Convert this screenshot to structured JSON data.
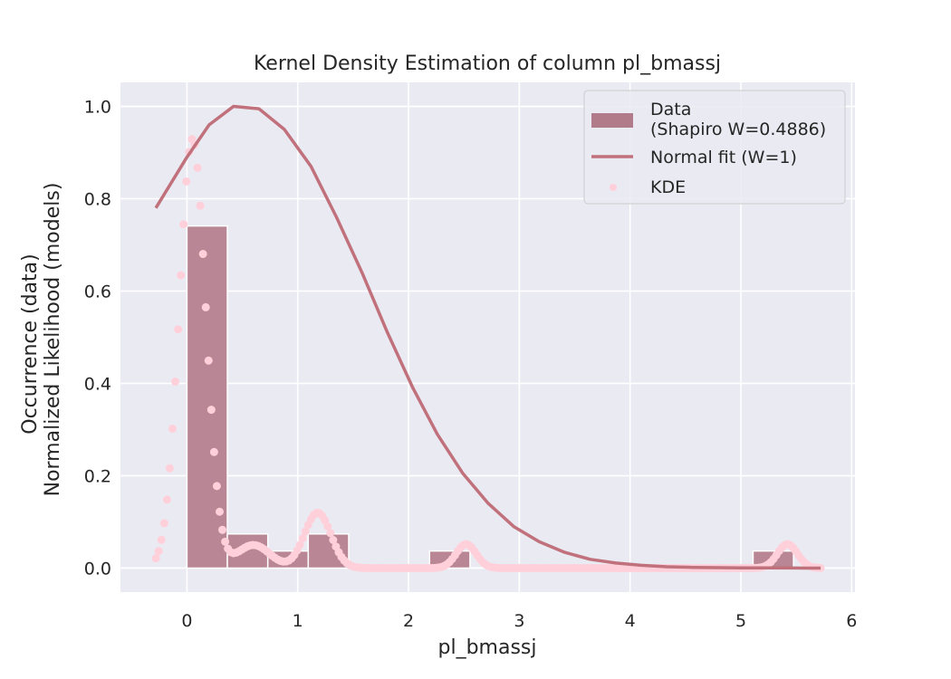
{
  "chart_data": {
    "type": "bar",
    "title": "Kernel Density Estimation of column pl_bmassj",
    "xlabel": "pl_bmassj",
    "ylabel_line1": "Occurrence (data)",
    "ylabel_line2": "Normalized Likelihood (models)",
    "xlim": [
      -0.6,
      6.03
    ],
    "ylim": [
      -0.052,
      1.052
    ],
    "xticks": [
      0,
      1,
      2,
      3,
      4,
      5,
      6
    ],
    "yticks": [
      0.0,
      0.2,
      0.4,
      0.6,
      0.8,
      1.0
    ],
    "grid": true,
    "legend_position": "top-right",
    "colors": {
      "plot_bg": "#eaeaf2",
      "grid": "#ffffff",
      "bars": "#b27b89",
      "normal_line": "#c0717c",
      "kde_points": "#ffd0da",
      "text": "#262626"
    },
    "histogram": {
      "name": "Data",
      "name_line2": "(Shapiro W=0.4886)",
      "bin_edges": [
        0.0,
        0.365,
        0.73,
        1.095,
        1.46,
        1.825,
        2.19,
        2.555,
        2.92,
        3.285,
        3.65,
        4.015,
        4.38,
        4.745,
        5.11,
        5.475
      ],
      "values": [
        0.741,
        0.074,
        0.037,
        0.074,
        0.0,
        0.0,
        0.037,
        0.0,
        0.0,
        0.0,
        0.0,
        0.0,
        0.0,
        0.0,
        0.037
      ]
    },
    "normal_fit": {
      "name": "Normal fit (W=1)",
      "x": [
        -0.28,
        0.0,
        0.2,
        0.42,
        0.65,
        0.88,
        1.12,
        1.35,
        1.58,
        1.81,
        2.04,
        2.26,
        2.49,
        2.72,
        2.95,
        3.18,
        3.41,
        3.64,
        3.87,
        4.1,
        4.33,
        4.56,
        4.79,
        5.02,
        5.25,
        5.48,
        5.72
      ],
      "y": [
        0.78,
        0.89,
        0.96,
        1.0,
        0.995,
        0.95,
        0.87,
        0.76,
        0.64,
        0.51,
        0.39,
        0.29,
        0.205,
        0.14,
        0.09,
        0.057,
        0.034,
        0.019,
        0.011,
        0.006,
        0.003,
        0.0015,
        0.001,
        0.0005,
        0.0003,
        0.0001,
        0.0
      ]
    },
    "kde": {
      "name": "KDE",
      "peaks": [
        {
          "center": 0.05,
          "width": 0.12,
          "height": 0.93
        },
        {
          "center": 0.6,
          "width": 0.15,
          "height": 0.05
        },
        {
          "center": 1.18,
          "width": 0.12,
          "height": 0.12
        },
        {
          "center": 2.52,
          "width": 0.09,
          "height": 0.052
        },
        {
          "center": 5.42,
          "width": 0.09,
          "height": 0.052
        }
      ],
      "x_range": [
        -0.28,
        5.72
      ]
    }
  }
}
